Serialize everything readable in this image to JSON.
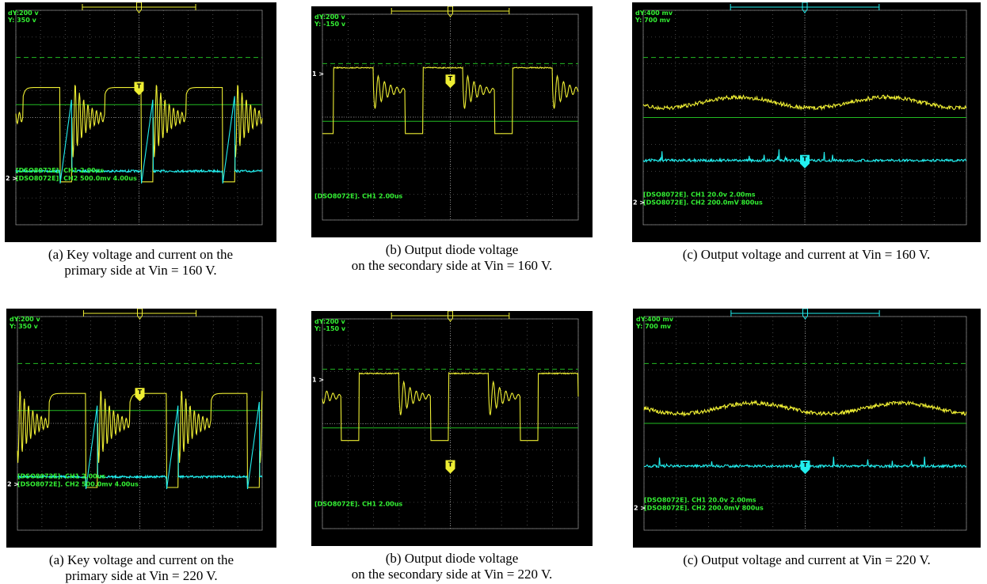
{
  "panels": [
    {
      "screen": {
        "readout": [
          "dY:200 v",
          "Y: 350 v"
        ],
        "channel_labels": [
          "2 >"
        ],
        "trigger": "T",
        "status": [
          "[DSO8072E]. CH1 2.00us",
          "[DSO8072E]. CH2 500.0mv 4.00us"
        ]
      },
      "caption": [
        "(a) Key voltage and current on the",
        "primary side at Vin = 160 V."
      ]
    },
    {
      "screen": {
        "readout": [
          "dY:200 v",
          "Y: -150 v"
        ],
        "channel_labels": [
          "1 >"
        ],
        "trigger": "T",
        "status": [
          "[DSO8072E]. CH1 2.00us"
        ]
      },
      "caption": [
        "(b) Output diode voltage",
        "on the secondary side at Vin = 160 V."
      ]
    },
    {
      "screen": {
        "readout": [
          "dY:400 mv",
          "Y: 700 mv"
        ],
        "channel_labels": [
          "2 >"
        ],
        "trigger": "T",
        "status": [
          "[DSO8072E]. CH1 20.0v 2.00ms",
          "[DSO8072E]. CH2 200.0mV 800us"
        ]
      },
      "caption": [
        "(c) Output voltage and current at Vin = 160 V."
      ]
    },
    {
      "screen": {
        "readout": [
          "dY:200 v",
          "Y: 350 v"
        ],
        "channel_labels": [
          "2 >"
        ],
        "trigger": "T",
        "status": [
          "[DSO8072E]. CH1 2.00us",
          "[DSO8072E]. CH2 500.0mv 4.00us"
        ]
      },
      "caption": [
        "(a) Key voltage and current on the",
        "primary side at Vin = 220 V."
      ]
    },
    {
      "screen": {
        "readout": [
          "dY:200 v",
          "Y: -150 v"
        ],
        "channel_labels": [
          "1 >"
        ],
        "trigger": "T",
        "status": [
          "[DSO8072E]. CH1 2.00us"
        ]
      },
      "caption": [
        "(b) Output diode voltage",
        "on the secondary side at Vin = 220 V."
      ]
    },
    {
      "screen": {
        "readout": [
          "dY:400 mv",
          "Y: 700 mv"
        ],
        "channel_labels": [
          "2 >"
        ],
        "trigger": "T",
        "status": [
          "[DSO8072E]. CH1 20.0v 2.00ms",
          "[DSO8072E]. CH2 200.0mV 800us"
        ]
      },
      "caption": [
        "(c) Output voltage and current at Vin = 220 V."
      ]
    }
  ]
}
